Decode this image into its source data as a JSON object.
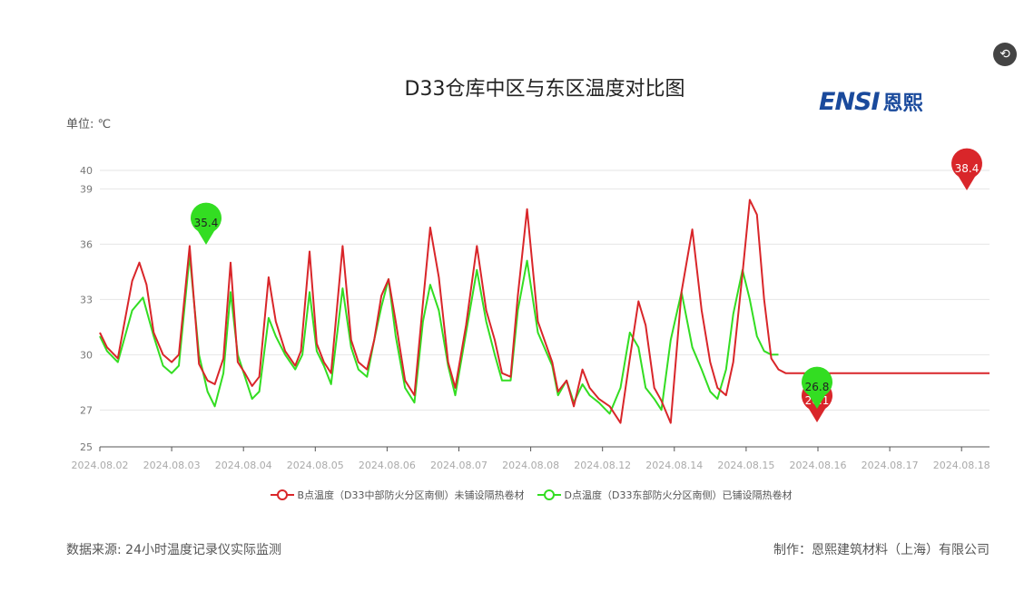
{
  "toolbar": {
    "restore_icon": "restore-icon"
  },
  "logo": {
    "latin": "ENSI",
    "cn": "恩熙"
  },
  "footer": {
    "source": "数据来源: 24小时温度记录仪实际监测",
    "maker": "制作：恩熙建筑材料（上海）有限公司"
  },
  "colors": {
    "series_b": "#d9262a",
    "series_d": "#33dd22",
    "grid": "#e6e6e6"
  },
  "chart_data": {
    "type": "line",
    "title": "D33仓库中区与东区温度对比图",
    "unit_label": "单位: ℃",
    "ylim": [
      25,
      40
    ],
    "yticks": [
      25,
      27,
      30,
      33,
      36,
      39,
      40
    ],
    "categories": [
      "2024.08.02",
      "2024.08.03",
      "2024.08.04",
      "2024.08.05",
      "2024.08.06",
      "2024.08.07",
      "2024.08.08",
      "2024.08.12",
      "2024.08.14",
      "2024.08.15",
      "2024.08.16",
      "2024.08.17",
      "2024.08.18"
    ],
    "legend_position": "bottom",
    "grid": true,
    "series": [
      {
        "name": "B点温度（D33中部防火分区南侧）未铺设隔热卷材",
        "color": "#d9262a",
        "x": [
          0,
          0.1,
          0.25,
          0.45,
          0.55,
          0.65,
          0.75,
          0.88,
          1.0,
          1.1,
          1.25,
          1.38,
          1.5,
          1.6,
          1.72,
          1.82,
          1.92,
          2.02,
          2.12,
          2.22,
          2.35,
          2.45,
          2.58,
          2.72,
          2.8,
          2.92,
          3.02,
          3.12,
          3.22,
          3.38,
          3.5,
          3.6,
          3.72,
          3.82,
          3.92,
          4.02,
          4.12,
          4.25,
          4.38,
          4.5,
          4.6,
          4.72,
          4.85,
          4.95,
          5.1,
          5.25,
          5.38,
          5.5,
          5.6,
          5.72,
          5.82,
          5.95,
          6.1,
          6.3,
          6.38,
          6.5,
          6.6,
          6.72,
          6.82,
          6.95,
          7.1,
          7.25,
          7.38,
          7.5,
          7.6,
          7.72,
          7.82,
          7.95,
          8.1,
          8.25,
          8.38,
          8.5,
          8.6,
          8.72,
          8.82,
          8.95,
          9.05,
          9.15,
          9.25,
          9.35,
          9.45,
          9.55,
          9.65,
          9.75,
          9.85,
          9.95,
          10.02,
          10.12,
          10.22,
          10.35,
          10.45,
          10.55,
          10.7,
          10.85,
          10.95,
          11.1,
          11.22,
          11.35,
          11.5,
          11.62,
          11.75,
          11.85,
          11.95,
          12.05,
          12.15,
          12.25,
          12.4
        ],
        "values": [
          31.2,
          30.4,
          29.8,
          34.0,
          35.0,
          33.8,
          31.2,
          30.0,
          29.6,
          30.0,
          35.9,
          29.5,
          28.6,
          28.4,
          29.8,
          35.0,
          29.6,
          29.0,
          28.3,
          28.8,
          34.2,
          31.8,
          30.2,
          29.4,
          30.2,
          35.6,
          30.6,
          29.6,
          29.0,
          35.9,
          30.8,
          29.6,
          29.2,
          30.8,
          33.2,
          34.1,
          31.8,
          28.6,
          27.8,
          32.8,
          36.9,
          34.2,
          29.6,
          28.2,
          31.6,
          35.9,
          32.4,
          30.8,
          29.0,
          28.8,
          33.2,
          37.9,
          31.8,
          29.6,
          28.0,
          28.6,
          27.2,
          29.2,
          28.2,
          27.6,
          27.2,
          26.3,
          29.8,
          32.9,
          31.6,
          28.2,
          27.5,
          26.3,
          33.4,
          36.8,
          32.4,
          29.6,
          28.2,
          27.8,
          29.6,
          34.4,
          38.4,
          37.6,
          33.0,
          29.8,
          29.2,
          29.0,
          29.0,
          29.0,
          29.0,
          29.0,
          29.0,
          29.0,
          29.0,
          29.0,
          29.0,
          29.0,
          29.0,
          29.0,
          29.0,
          29.0,
          29.0,
          29.0,
          29.0,
          29.0,
          29.0,
          29.0,
          29.0,
          29.0,
          29.0,
          29.0,
          29.0
        ],
        "max_label": "38.4",
        "min_label": "26.1"
      },
      {
        "name": "D点温度（D33东部防火分区南侧）已铺设隔热卷材",
        "color": "#33dd22",
        "x": [
          0,
          0.1,
          0.25,
          0.45,
          0.6,
          0.75,
          0.88,
          1.0,
          1.1,
          1.25,
          1.38,
          1.5,
          1.6,
          1.72,
          1.82,
          1.92,
          2.02,
          2.12,
          2.22,
          2.35,
          2.45,
          2.58,
          2.72,
          2.82,
          2.92,
          3.02,
          3.12,
          3.22,
          3.38,
          3.5,
          3.6,
          3.72,
          3.82,
          3.92,
          4.02,
          4.12,
          4.25,
          4.38,
          4.5,
          4.6,
          4.72,
          4.85,
          4.95,
          5.1,
          5.25,
          5.38,
          5.5,
          5.6,
          5.72,
          5.82,
          5.95,
          6.1,
          6.3,
          6.38,
          6.5,
          6.6,
          6.72,
          6.82,
          6.95,
          7.1,
          7.25,
          7.38,
          7.5,
          7.6,
          7.72,
          7.82,
          7.95,
          8.1,
          8.25,
          8.38,
          8.5,
          8.6,
          8.72,
          8.82,
          8.95,
          9.05,
          9.15,
          9.25,
          9.35,
          9.45
        ],
        "values": [
          31.0,
          30.2,
          29.6,
          32.4,
          33.1,
          31.0,
          29.4,
          29.0,
          29.4,
          35.4,
          30.0,
          28.0,
          27.2,
          29.0,
          33.4,
          30.0,
          28.8,
          27.6,
          28.0,
          32.0,
          31.0,
          30.0,
          29.2,
          30.0,
          33.4,
          30.2,
          29.4,
          28.4,
          33.6,
          30.4,
          29.2,
          28.8,
          30.8,
          32.6,
          34.1,
          31.0,
          28.2,
          27.4,
          31.8,
          33.8,
          32.4,
          29.4,
          27.8,
          31.2,
          34.6,
          31.8,
          30.0,
          28.6,
          28.6,
          32.4,
          35.1,
          31.2,
          29.4,
          27.8,
          28.6,
          27.4,
          28.4,
          27.8,
          27.4,
          26.8,
          28.2,
          31.2,
          30.4,
          28.2,
          27.6,
          27.0,
          30.8,
          33.4,
          30.4,
          29.2,
          28.0,
          27.6,
          29.2,
          32.2,
          34.6,
          33.0,
          31.0,
          30.2,
          30.0,
          30.0
        ],
        "max_label": "35.4",
        "min_label": "26.8"
      }
    ]
  }
}
